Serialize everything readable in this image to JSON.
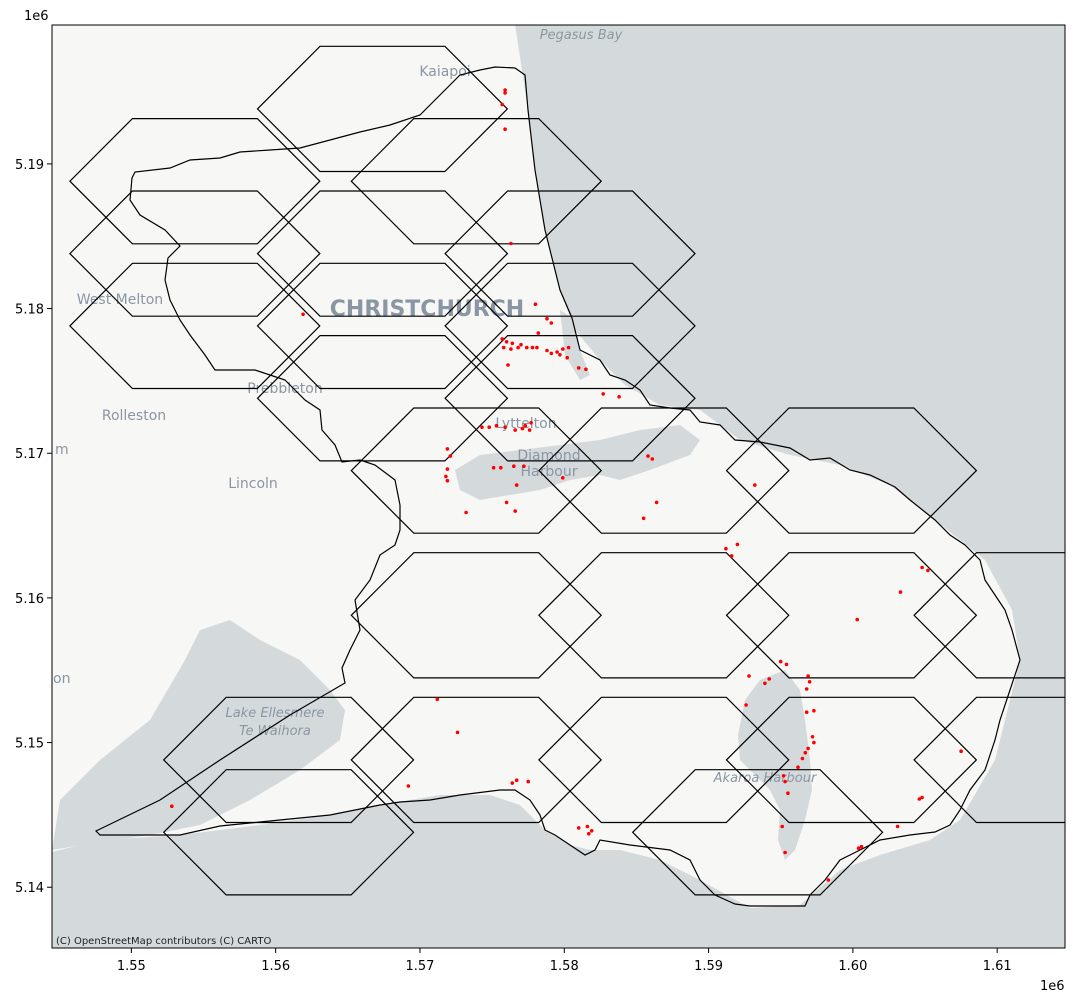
{
  "axes": {
    "x_offset": "1e6",
    "y_offset": "1e6",
    "x_ticks": [
      "1.55",
      "1.56",
      "1.57",
      "1.58",
      "1.59",
      "1.60",
      "1.61"
    ],
    "y_ticks": [
      "5.19",
      "5.18",
      "5.17",
      "5.16",
      "5.15",
      "5.14"
    ]
  },
  "basemap": {
    "attribution": "(C) OpenStreetMap contributors (C) CARTO",
    "place_labels": [
      {
        "text": "Pegasus Bay",
        "kind": "water"
      },
      {
        "text": "Kaiapoi",
        "kind": "town"
      },
      {
        "text": "West Melton",
        "kind": "town"
      },
      {
        "text": "CHRISTCHURCH",
        "kind": "city"
      },
      {
        "text": "Prebbleton",
        "kind": "town"
      },
      {
        "text": "Rolleston",
        "kind": "town"
      },
      {
        "text": "Lyttelton",
        "kind": "town"
      },
      {
        "text": "Diamond",
        "kind": "town"
      },
      {
        "text": "Harbour",
        "kind": "town"
      },
      {
        "text": "Lincoln",
        "kind": "town"
      },
      {
        "text": "Lake Ellesmere",
        "kind": "water"
      },
      {
        "text": "Te Waihora",
        "kind": "water"
      },
      {
        "text": "Akaroa Harbour",
        "kind": "water"
      },
      {
        "text": "m",
        "kind": "town"
      },
      {
        "text": "on",
        "kind": "town"
      }
    ]
  },
  "colors": {
    "land": "#f7f7f5",
    "water": "#d4dadc",
    "boundary": "#000000",
    "points": "#ff0000"
  },
  "chart_data": {
    "type": "scatter",
    "title": "",
    "xlabel": "",
    "ylabel": "",
    "xlim": [
      1544500,
      1614700
    ],
    "ylim": [
      5135800,
      5199600
    ],
    "grid": false,
    "hex_grid": {
      "orientation": "flat-top",
      "centers": [
        [
          1554400,
          5183800
        ],
        [
          1567400,
          5183800
        ],
        [
          1580400,
          5183800
        ],
        [
          1567400,
          5173800
        ],
        [
          1580400,
          5173800
        ],
        [
          1554400,
          5178800
        ],
        [
          1567400,
          5178800
        ],
        [
          1580400,
          5178800
        ],
        [
          1573900,
          5188800
        ],
        [
          1573900,
          5168800
        ],
        [
          1586900,
          5168800
        ],
        [
          1599900,
          5168800
        ],
        [
          1586900,
          5158800
        ],
        [
          1599900,
          5158800
        ],
        [
          1612900,
          5158800
        ],
        [
          1573900,
          5158800
        ],
        [
          1573900,
          5148800
        ],
        [
          1586900,
          5148800
        ],
        [
          1599900,
          5148800
        ],
        [
          1612900,
          5148800
        ],
        [
          1560900,
          5148800
        ],
        [
          1560900,
          5143800
        ],
        [
          1593400,
          5143800
        ],
        [
          1567400,
          5193800
        ],
        [
          1554400,
          5188800
        ]
      ]
    },
    "points": [
      [
        1575900,
        5195100
      ],
      [
        1575900,
        5194900
      ],
      [
        1575700,
        5194100
      ],
      [
        1575900,
        5192400
      ],
      [
        1576300,
        5184500
      ],
      [
        1561900,
        5179600
      ],
      [
        1578000,
        5180300
      ],
      [
        1578800,
        5179300
      ],
      [
        1579100,
        5179000
      ],
      [
        1578200,
        5178300
      ],
      [
        1575700,
        5177900
      ],
      [
        1576000,
        5177700
      ],
      [
        1576400,
        5177600
      ],
      [
        1575800,
        5177300
      ],
      [
        1576300,
        5177200
      ],
      [
        1576800,
        5177300
      ],
      [
        1577000,
        5177500
      ],
      [
        1577400,
        5177300
      ],
      [
        1577800,
        5177300
      ],
      [
        1578100,
        5177300
      ],
      [
        1578800,
        5177100
      ],
      [
        1579100,
        5176900
      ],
      [
        1579500,
        5177000
      ],
      [
        1579900,
        5177200
      ],
      [
        1580300,
        5177300
      ],
      [
        1579700,
        5176800
      ],
      [
        1580200,
        5176600
      ],
      [
        1576100,
        5176100
      ],
      [
        1581000,
        5175900
      ],
      [
        1581500,
        5175800
      ],
      [
        1582700,
        5174100
      ],
      [
        1583800,
        5173900
      ],
      [
        1574300,
        5171800
      ],
      [
        1574800,
        5171800
      ],
      [
        1575300,
        5171900
      ],
      [
        1575900,
        5171800
      ],
      [
        1576600,
        5171600
      ],
      [
        1577300,
        5171900
      ],
      [
        1577700,
        5172100
      ],
      [
        1577100,
        5171700
      ],
      [
        1577600,
        5171600
      ],
      [
        1571900,
        5170300
      ],
      [
        1572100,
        5169800
      ],
      [
        1571900,
        5168900
      ],
      [
        1571800,
        5168400
      ],
      [
        1571900,
        5168100
      ],
      [
        1575100,
        5169000
      ],
      [
        1575600,
        5169000
      ],
      [
        1576500,
        5169100
      ],
      [
        1577200,
        5169100
      ],
      [
        1576700,
        5167800
      ],
      [
        1576000,
        5166600
      ],
      [
        1576600,
        5166000
      ],
      [
        1573200,
        5165900
      ],
      [
        1579900,
        5168300
      ],
      [
        1585800,
        5169800
      ],
      [
        1586100,
        5169600
      ],
      [
        1586400,
        5166600
      ],
      [
        1585500,
        5165500
      ],
      [
        1593200,
        5167800
      ],
      [
        1591200,
        5163400
      ],
      [
        1591600,
        5162900
      ],
      [
        1592000,
        5163700
      ],
      [
        1604800,
        5162100
      ],
      [
        1605200,
        5161900
      ],
      [
        1603300,
        5160400
      ],
      [
        1600300,
        5158500
      ],
      [
        1592800,
        5154600
      ],
      [
        1595000,
        5155600
      ],
      [
        1595400,
        5155400
      ],
      [
        1593900,
        5154100
      ],
      [
        1594200,
        5154400
      ],
      [
        1596900,
        5154600
      ],
      [
        1597000,
        5154200
      ],
      [
        1596800,
        5153700
      ],
      [
        1596800,
        5152100
      ],
      [
        1597300,
        5152200
      ],
      [
        1592600,
        5152600
      ],
      [
        1571200,
        5153000
      ],
      [
        1572600,
        5150700
      ],
      [
        1597200,
        5150400
      ],
      [
        1597300,
        5150000
      ],
      [
        1596900,
        5149600
      ],
      [
        1596700,
        5149300
      ],
      [
        1596500,
        5148900
      ],
      [
        1596200,
        5148300
      ],
      [
        1595200,
        5147700
      ],
      [
        1595300,
        5147300
      ],
      [
        1595500,
        5146500
      ],
      [
        1607500,
        5149400
      ],
      [
        1604600,
        5146100
      ],
      [
        1604800,
        5146200
      ],
      [
        1603100,
        5144200
      ],
      [
        1595100,
        5144200
      ],
      [
        1595300,
        5142400
      ],
      [
        1600400,
        5142700
      ],
      [
        1600600,
        5142800
      ],
      [
        1598300,
        5140500
      ],
      [
        1576400,
        5147200
      ],
      [
        1576700,
        5147400
      ],
      [
        1577500,
        5147300
      ],
      [
        1569200,
        5147000
      ],
      [
        1552800,
        5145600
      ],
      [
        1581000,
        5144100
      ],
      [
        1581600,
        5144200
      ],
      [
        1581900,
        5143900
      ],
      [
        1581700,
        5143700
      ]
    ]
  }
}
